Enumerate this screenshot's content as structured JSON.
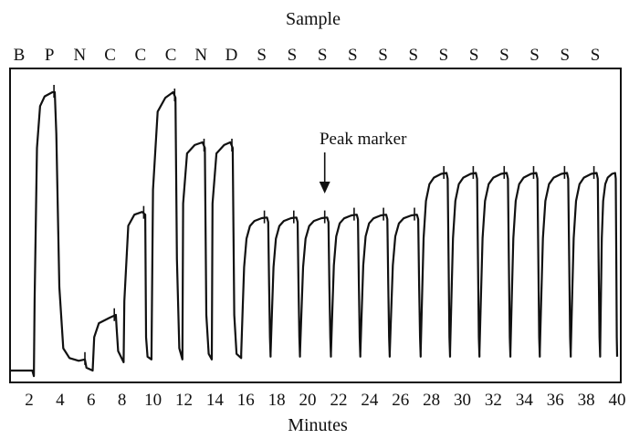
{
  "chart_data": {
    "type": "line",
    "title": "Sample",
    "xlabel": "Minutes",
    "ylabel": "",
    "xlim": [
      0.7,
      40
    ],
    "ylim": [
      -0.05,
      1.15
    ],
    "grid": false,
    "legend": "none",
    "x_ticks": [
      2,
      4,
      6,
      8,
      10,
      12,
      14,
      16,
      18,
      20,
      22,
      24,
      26,
      28,
      30,
      32,
      34,
      36,
      38,
      40
    ],
    "sample_labels": [
      "B",
      "P",
      "N",
      "C",
      "C",
      "C",
      "N",
      "D",
      "S",
      "S",
      "S",
      "S",
      "S",
      "S",
      "S",
      "S",
      "S",
      "S",
      "S",
      "S"
    ],
    "annotation": {
      "text": "Peak marker",
      "x": 21.1
    },
    "series": [
      {
        "color": "#111111",
        "points": [
          [
            0.7,
            0.0
          ],
          [
            2.2,
            0.0
          ],
          [
            2.3,
            -0.02
          ],
          [
            2.35,
            0.25
          ],
          [
            2.5,
            0.8
          ],
          [
            2.7,
            0.95
          ],
          [
            3.0,
            0.985
          ],
          [
            3.5,
            1.0
          ],
          [
            3.65,
            1.0
          ],
          [
            3.75,
            0.85
          ],
          [
            3.95,
            0.3
          ],
          [
            4.2,
            0.08
          ],
          [
            4.6,
            0.045
          ],
          [
            5.2,
            0.035
          ],
          [
            5.6,
            0.04
          ],
          [
            5.7,
            0.01
          ],
          [
            6.1,
            0.0
          ],
          [
            6.2,
            0.12
          ],
          [
            6.5,
            0.17
          ],
          [
            7.2,
            0.19
          ],
          [
            7.6,
            0.2
          ],
          [
            7.65,
            0.15
          ],
          [
            7.75,
            0.07
          ],
          [
            8.1,
            0.03
          ],
          [
            8.15,
            0.25
          ],
          [
            8.4,
            0.52
          ],
          [
            8.8,
            0.56
          ],
          [
            9.3,
            0.57
          ],
          [
            9.5,
            0.56
          ],
          [
            9.55,
            0.12
          ],
          [
            9.65,
            0.05
          ],
          [
            9.9,
            0.04
          ],
          [
            10.0,
            0.65
          ],
          [
            10.3,
            0.93
          ],
          [
            10.8,
            0.98
          ],
          [
            11.3,
            1.0
          ],
          [
            11.45,
            0.98
          ],
          [
            11.55,
            0.4
          ],
          [
            11.7,
            0.08
          ],
          [
            11.9,
            0.04
          ],
          [
            11.95,
            0.6
          ],
          [
            12.2,
            0.78
          ],
          [
            12.7,
            0.81
          ],
          [
            13.2,
            0.82
          ],
          [
            13.35,
            0.8
          ],
          [
            13.45,
            0.2
          ],
          [
            13.6,
            0.06
          ],
          [
            13.8,
            0.04
          ],
          [
            13.85,
            0.6
          ],
          [
            14.1,
            0.78
          ],
          [
            14.6,
            0.81
          ],
          [
            15.0,
            0.82
          ],
          [
            15.15,
            0.8
          ],
          [
            15.25,
            0.2
          ],
          [
            15.4,
            0.06
          ],
          [
            15.7,
            0.045
          ]
        ],
        "peaks": [
          {
            "start": 15.7,
            "top": 0.55,
            "end": 17.6
          },
          {
            "start": 17.6,
            "top": 0.55,
            "end": 19.5
          },
          {
            "start": 19.5,
            "top": 0.55,
            "end": 21.5
          },
          {
            "start": 21.5,
            "top": 0.56,
            "end": 23.4
          },
          {
            "start": 23.4,
            "top": 0.56,
            "end": 25.3
          },
          {
            "start": 25.3,
            "top": 0.56,
            "end": 27.3
          },
          {
            "start": 27.3,
            "top": 0.71,
            "end": 29.2
          },
          {
            "start": 29.2,
            "top": 0.71,
            "end": 31.1
          },
          {
            "start": 31.1,
            "top": 0.71,
            "end": 33.1
          },
          {
            "start": 33.1,
            "top": 0.71,
            "end": 35.0
          },
          {
            "start": 35.0,
            "top": 0.71,
            "end": 37.0
          },
          {
            "start": 37.0,
            "top": 0.71,
            "end": 38.9
          },
          {
            "start": 38.9,
            "top": 0.71,
            "end": 40.0
          }
        ],
        "peak_marks_x": [
          3.6,
          5.6,
          7.5,
          9.4,
          11.4,
          13.3,
          15.1,
          17.2,
          19.1,
          21.1,
          23.0,
          24.9,
          26.9,
          28.8,
          30.7,
          32.7,
          34.6,
          36.6,
          38.5
        ]
      }
    ]
  }
}
